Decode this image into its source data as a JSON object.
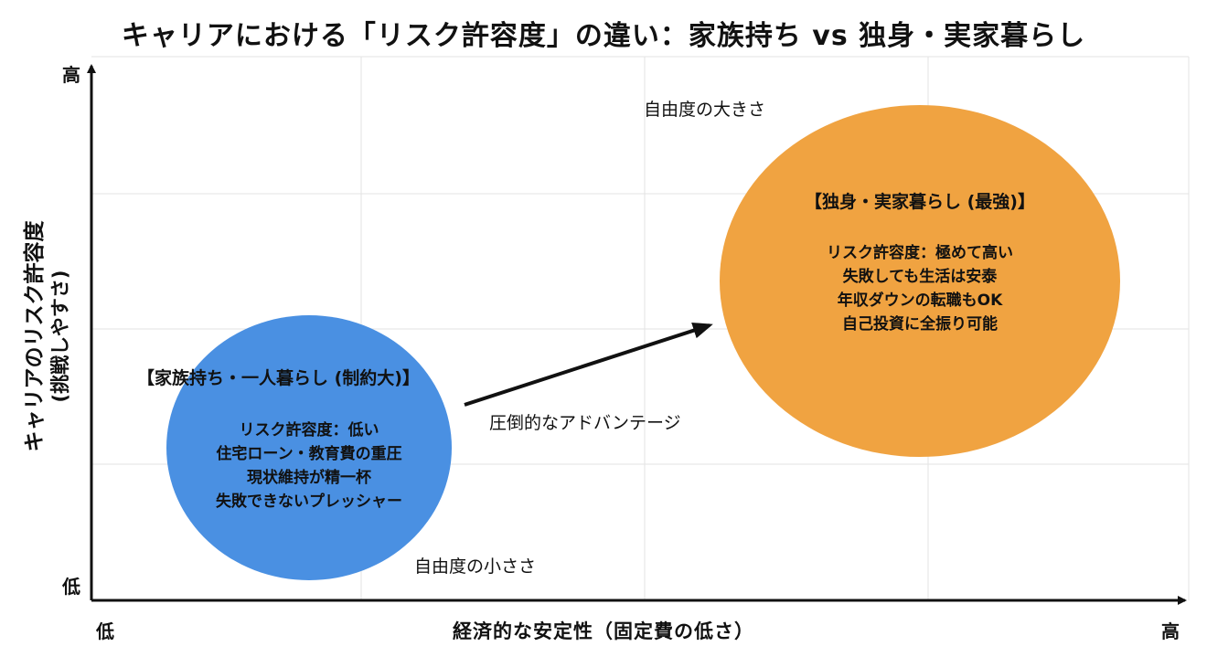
{
  "title": "キャリアにおける「リスク許容度」の違い：家族持ち vs 独身・実家暮らし",
  "colors": {
    "left_bubble": "#4a90e2",
    "right_bubble": "#f0a341",
    "axis": "#111111",
    "grid": "#e3e3e3"
  },
  "axes": {
    "y_title_line1": "キャリアのリスク許容度",
    "y_title_line2": "(挑戦しやすさ)",
    "y_high": "高",
    "y_low": "低",
    "x_title": "経済的な安定性（固定費の低さ）",
    "x_low": "低",
    "x_high": "高"
  },
  "left_group": {
    "heading": "【家族持ち・一人暮らし (制約大)】",
    "lines": [
      "リスク許容度：低い",
      "住宅ローン・教育費の重圧",
      "現状維持が精一杯",
      "失敗できないプレッシャー"
    ],
    "size_label": "自由度の小ささ"
  },
  "right_group": {
    "heading": "【独身・実家暮らし (最強)】",
    "lines": [
      "リスク許容度：極めて高い",
      "失敗しても生活は安泰",
      "年収ダウンの転職もOK",
      "自己投資に全振り可能"
    ],
    "size_label": "自由度の大きさ"
  },
  "arrow_label": "圧倒的なアドバンテージ"
}
